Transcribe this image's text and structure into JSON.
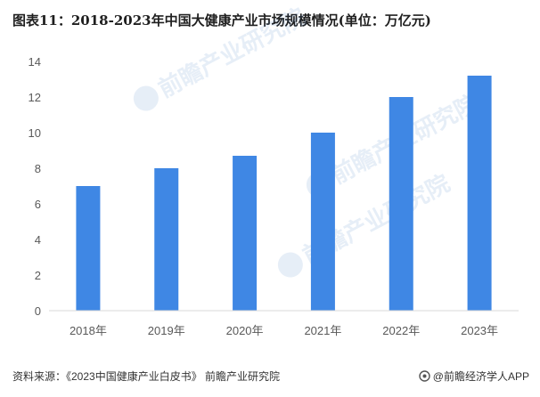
{
  "title": "图表11：2018-2023年中国大健康产业市场规模情况(单位：万亿元)",
  "footer": {
    "source": "资料来源：《2023中国健康产业白皮书》 前瞻产业研究院",
    "brand": "@前瞻经济学人APP"
  },
  "watermark": "前瞻产业研究院",
  "colors": {
    "bar": "#3f87e4",
    "axis": "#d9d9d9",
    "tick_text": "#595959"
  },
  "chart_data": {
    "type": "bar",
    "title": "图表11：2018-2023年中国大健康产业市场规模情况(单位：万亿元)",
    "categories": [
      "2018年",
      "2019年",
      "2020年",
      "2021年",
      "2022年",
      "2023年"
    ],
    "values": [
      7.0,
      8.0,
      8.7,
      10.0,
      12.0,
      13.2
    ],
    "ylim": [
      0,
      14
    ],
    "yticks": [
      0,
      2,
      4,
      6,
      8,
      10,
      12,
      14
    ],
    "xlabel": "",
    "ylabel": "",
    "grid": false,
    "legend": "none"
  }
}
